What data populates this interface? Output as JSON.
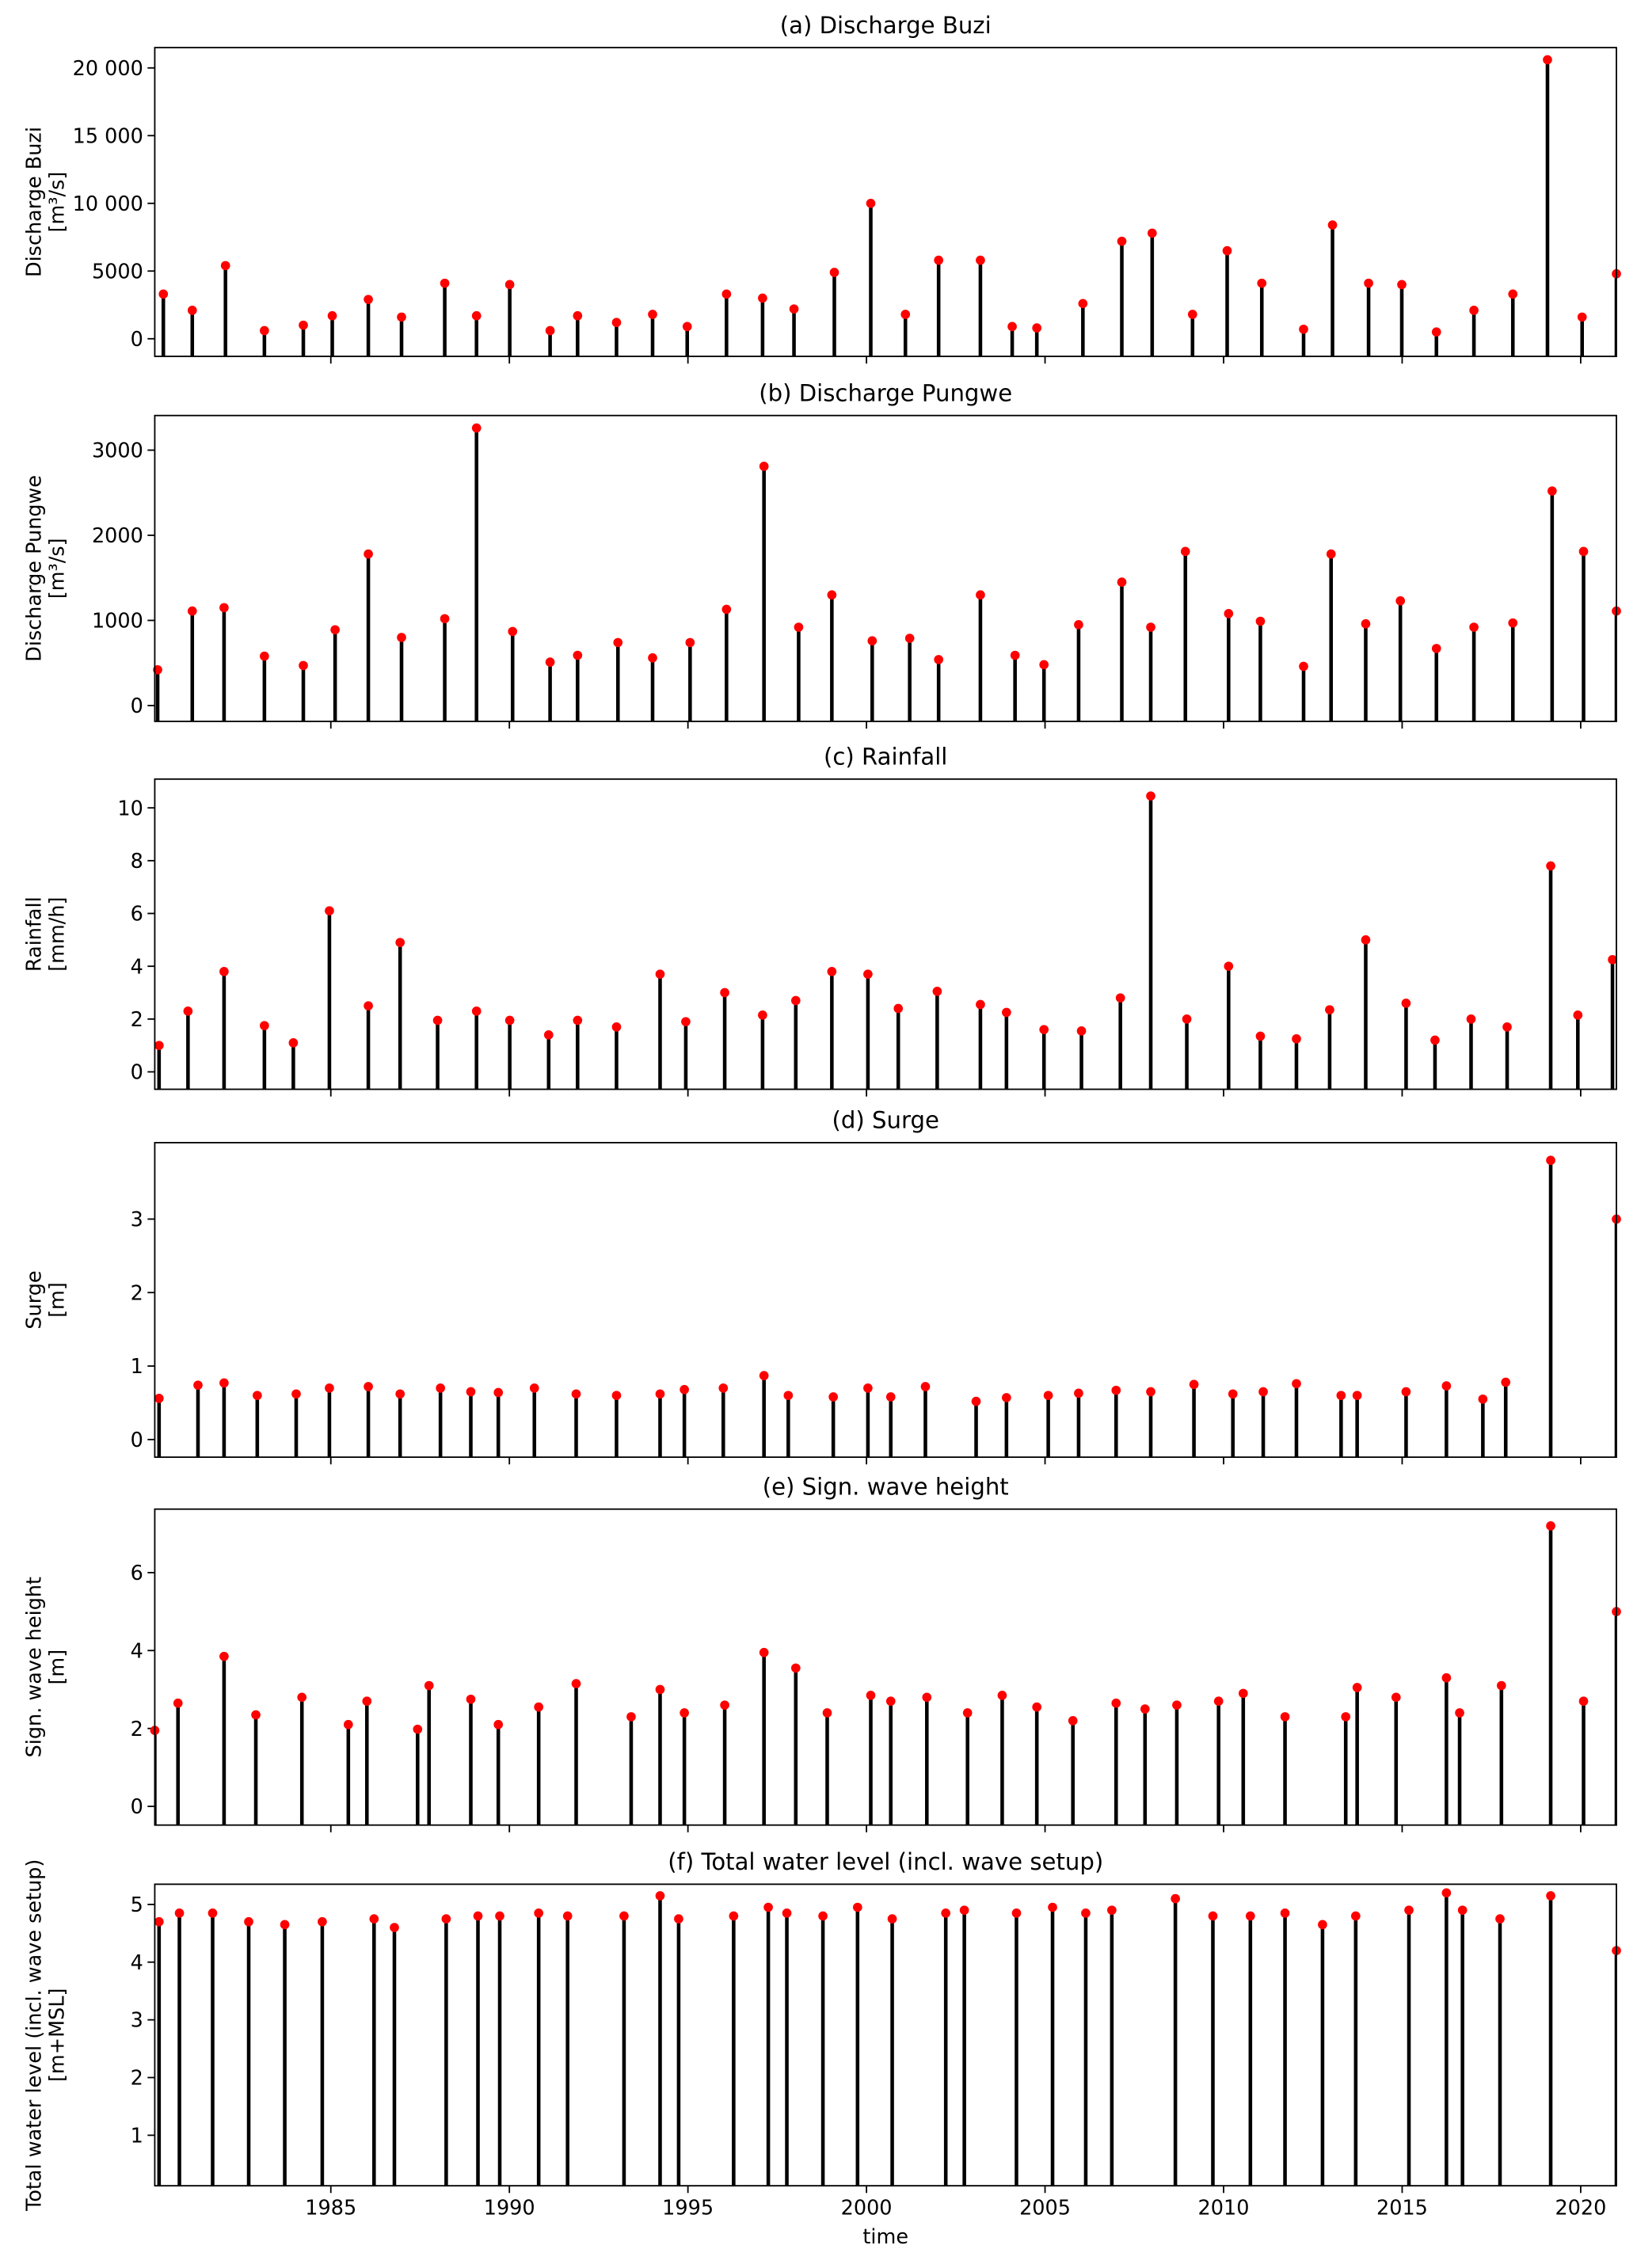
{
  "chart_data": [
    {
      "type": "scatter",
      "title": "(a) Discharge Buzi",
      "ylabel": [
        "Discharge Buzi",
        "[m³/s]"
      ],
      "color": "#ff0000",
      "stem_color": "#000000",
      "xlim": [
        1980.07,
        2021.0
      ],
      "xticks": [
        1985,
        1990,
        1995,
        2000,
        2005,
        2010,
        2015,
        2020
      ],
      "ylim": [
        -1300,
        21500
      ],
      "yticks": [
        0,
        5000,
        {
          "value": 10000,
          "label": "10 000"
        },
        {
          "value": 15000,
          "label": "15 000"
        },
        {
          "value": 20000,
          "label": "20 000"
        }
      ],
      "x": [
        1980.31,
        1981.12,
        1982.05,
        1983.14,
        1984.23,
        1985.04,
        1986.05,
        1986.98,
        1988.19,
        1989.08,
        1990.01,
        1991.14,
        1991.91,
        1993.0,
        1994.01,
        1994.98,
        1996.08,
        1997.09,
        1997.97,
        1999.1,
        2000.12,
        2001.09,
        2002.02,
        2003.19,
        2004.08,
        2004.77,
        2006.06,
        2007.15,
        2008.0,
        2009.13,
        2010.1,
        2011.07,
        2012.24,
        2013.05,
        2014.06,
        2014.99,
        2015.96,
        2017.01,
        2018.1,
        2019.07,
        2020.04,
        2021.0
      ],
      "values": [
        3300,
        2100,
        5400,
        600,
        1000,
        1700,
        2900,
        1600,
        4100,
        1700,
        4000,
        600,
        1700,
        1200,
        1800,
        900,
        3300,
        3000,
        2200,
        4900,
        10000,
        1800,
        5800,
        5800,
        900,
        800,
        2600,
        7200,
        7800,
        1800,
        6500,
        4100,
        700,
        8400,
        4100,
        4000,
        500,
        2100,
        3300,
        20600,
        1600,
        4800
      ]
    },
    {
      "type": "scatter",
      "title": "(b) Discharge Pungwe",
      "ylabel": [
        "Discharge Pungwe",
        "[m³/s]"
      ],
      "color": "#ff0000",
      "stem_color": "#000000",
      "xlim": [
        1980.07,
        2021.0
      ],
      "xticks": [
        1985,
        1990,
        1995,
        2000,
        2005,
        2010,
        2015,
        2020
      ],
      "ylim": [
        -186,
        3407
      ],
      "yticks": [
        0,
        1000,
        2000,
        3000
      ],
      "x": [
        1980.15,
        1981.12,
        1982.01,
        1983.14,
        1984.23,
        1985.12,
        1986.05,
        1986.98,
        1988.19,
        1989.08,
        1990.09,
        1991.14,
        1991.91,
        1993.04,
        1994.01,
        1995.06,
        1996.08,
        1997.13,
        1998.1,
        1999.03,
        2000.16,
        2001.21,
        2002.02,
        2003.19,
        2004.16,
        2004.97,
        2005.94,
        2007.15,
        2007.96,
        2008.93,
        2010.14,
        2011.03,
        2012.24,
        2013.01,
        2013.98,
        2014.95,
        2015.96,
        2017.01,
        2018.1,
        2019.2,
        2020.08,
        2021.0
      ],
      "values": [
        420,
        1110,
        1150,
        580,
        470,
        890,
        1780,
        800,
        1020,
        3260,
        870,
        510,
        590,
        740,
        560,
        740,
        1130,
        2810,
        920,
        1300,
        760,
        790,
        540,
        1300,
        590,
        480,
        950,
        1450,
        920,
        1810,
        1080,
        990,
        460,
        1780,
        960,
        1230,
        670,
        920,
        970,
        2520,
        1810,
        1110
      ]
    },
    {
      "type": "scatter",
      "title": "(c) Rainfall",
      "ylabel": [
        "Rainfall",
        "[mm/h]"
      ],
      "color": "#ff0000",
      "stem_color": "#000000",
      "xlim": [
        1980.07,
        2021.0
      ],
      "xticks": [
        1985,
        1990,
        1995,
        2000,
        2005,
        2010,
        2015,
        2020
      ],
      "ylim": [
        -0.66,
        11.09
      ],
      "yticks": [
        0,
        2,
        4,
        6,
        8,
        10
      ],
      "x": [
        1980.19,
        1981.0,
        1982.01,
        1983.14,
        1983.95,
        1984.96,
        1986.05,
        1986.94,
        1987.99,
        1989.08,
        1990.01,
        1991.1,
        1991.91,
        1993.0,
        1994.22,
        1994.94,
        1996.03,
        1997.09,
        1998.02,
        1999.03,
        2000.04,
        2000.89,
        2001.98,
        2003.19,
        2003.92,
        2004.97,
        2006.02,
        2007.11,
        2007.96,
        2008.97,
        2010.14,
        2011.03,
        2012.04,
        2012.97,
        2013.98,
        2015.11,
        2015.92,
        2016.93,
        2017.94,
        2019.16,
        2019.92,
        2020.89
      ],
      "values": [
        1.0,
        2.3,
        3.8,
        1.75,
        1.1,
        6.1,
        2.5,
        4.9,
        1.95,
        2.3,
        1.95,
        1.4,
        1.95,
        1.7,
        3.7,
        1.9,
        3.0,
        2.15,
        2.7,
        3.8,
        3.7,
        2.4,
        3.05,
        2.55,
        2.25,
        1.6,
        1.55,
        2.8,
        10.45,
        2.0,
        4.0,
        1.35,
        1.25,
        2.35,
        5.0,
        2.6,
        1.2,
        2.0,
        1.7,
        7.8,
        2.15,
        4.25
      ]
    },
    {
      "type": "scatter",
      "title": "(d) Surge",
      "ylabel": [
        "Surge",
        "[m]"
      ],
      "color": "#ff0000",
      "stem_color": "#000000",
      "xlim": [
        1980.07,
        2021.0
      ],
      "xticks": [
        1985,
        1990,
        1995,
        2000,
        2005,
        2010,
        2015,
        2020
      ],
      "ylim": [
        -0.24,
        4.04
      ],
      "yticks": [
        0,
        1,
        2,
        3
      ],
      "x": [
        1980.19,
        1981.28,
        1982.01,
        1982.94,
        1984.03,
        1984.96,
        1986.05,
        1986.94,
        1988.07,
        1988.92,
        1989.69,
        1990.7,
        1991.87,
        1993.0,
        1994.22,
        1994.9,
        1995.99,
        1997.13,
        1997.81,
        1999.07,
        2000.04,
        2000.68,
        2001.65,
        2003.07,
        2003.92,
        2005.09,
        2005.94,
        2006.99,
        2007.96,
        2009.17,
        2010.26,
        2011.11,
        2012.04,
        2013.29,
        2013.74,
        2015.11,
        2016.24,
        2017.26,
        2017.9,
        2019.16,
        2021.0
      ],
      "values": [
        0.56,
        0.74,
        0.77,
        0.6,
        0.62,
        0.7,
        0.72,
        0.62,
        0.7,
        0.65,
        0.64,
        0.7,
        0.62,
        0.6,
        0.62,
        0.68,
        0.7,
        0.87,
        0.6,
        0.58,
        0.7,
        0.58,
        0.72,
        0.52,
        0.57,
        0.6,
        0.63,
        0.67,
        0.65,
        0.75,
        0.62,
        0.65,
        0.76,
        0.6,
        0.6,
        0.65,
        0.73,
        0.55,
        0.78,
        3.8,
        3.0
      ]
    },
    {
      "type": "scatter",
      "title": "(e) Sign. wave height",
      "ylabel": [
        "Sign. wave height",
        "[m]"
      ],
      "color": "#ff0000",
      "stem_color": "#000000",
      "xlim": [
        1980.07,
        2021.0
      ],
      "xticks": [
        1985,
        1990,
        1995,
        2000,
        2005,
        2010,
        2015,
        2020
      ],
      "ylim": [
        -0.48,
        7.63
      ],
      "yticks": [
        0,
        2,
        4,
        6
      ],
      "x": [
        1980.07,
        1980.72,
        1982.01,
        1982.9,
        1984.19,
        1985.49,
        1986.01,
        1987.43,
        1987.75,
        1988.92,
        1989.69,
        1990.82,
        1991.87,
        1993.41,
        1994.22,
        1994.9,
        1996.03,
        1997.13,
        1998.02,
        1998.9,
        2000.12,
        2000.68,
        2001.69,
        2002.83,
        2003.8,
        2004.77,
        2005.78,
        2006.99,
        2007.8,
        2008.69,
        2009.86,
        2010.55,
        2011.72,
        2013.42,
        2013.74,
        2014.83,
        2016.24,
        2016.61,
        2017.78,
        2019.16,
        2020.08,
        2021.0
      ],
      "values": [
        1.95,
        2.65,
        3.85,
        2.35,
        2.8,
        2.1,
        2.7,
        1.98,
        3.1,
        2.75,
        2.1,
        2.55,
        3.15,
        2.3,
        3.0,
        2.4,
        2.6,
        3.95,
        3.55,
        2.4,
        2.85,
        2.7,
        2.8,
        2.4,
        2.85,
        2.55,
        2.2,
        2.65,
        2.5,
        2.6,
        2.7,
        2.9,
        2.3,
        2.3,
        3.05,
        2.8,
        3.3,
        2.4,
        3.1,
        7.2,
        2.7,
        5.0
      ]
    },
    {
      "type": "scatter",
      "title": "(f) Total water level (incl. wave setup)",
      "ylabel": [
        "Total water level (incl. wave setup)",
        "[m+MSL]"
      ],
      "xlabel": "time",
      "color": "#ff0000",
      "stem_color": "#000000",
      "xlim": [
        1980.07,
        2021.0
      ],
      "xticks": [
        1985,
        1990,
        1995,
        2000,
        2005,
        2010,
        2015,
        2020
      ],
      "ylim": [
        0.125,
        5.35
      ],
      "yticks": [
        1,
        2,
        3,
        4,
        5
      ],
      "x": [
        1980.19,
        1980.76,
        1981.69,
        1982.7,
        1983.71,
        1984.76,
        1986.21,
        1986.78,
        1988.23,
        1989.12,
        1989.73,
        1990.82,
        1991.63,
        1993.21,
        1994.22,
        1994.74,
        1996.28,
        1997.25,
        1997.77,
        1998.78,
        1999.75,
        2000.72,
        2002.22,
        2002.74,
        2004.2,
        2005.21,
        2006.14,
        2006.87,
        2008.65,
        2009.7,
        2010.75,
        2011.72,
        2012.77,
        2013.7,
        2015.19,
        2016.24,
        2016.69,
        2017.74,
        2019.16,
        2021.0
      ],
      "values": [
        4.7,
        4.85,
        4.85,
        4.7,
        4.65,
        4.7,
        4.75,
        4.6,
        4.75,
        4.8,
        4.8,
        4.85,
        4.8,
        4.8,
        5.15,
        4.75,
        4.8,
        4.95,
        4.85,
        4.8,
        4.95,
        4.75,
        4.85,
        4.9,
        4.85,
        4.95,
        4.85,
        4.9,
        5.1,
        4.8,
        4.8,
        4.85,
        4.65,
        4.8,
        4.9,
        5.2,
        4.9,
        4.75,
        5.15,
        4.2
      ]
    }
  ]
}
